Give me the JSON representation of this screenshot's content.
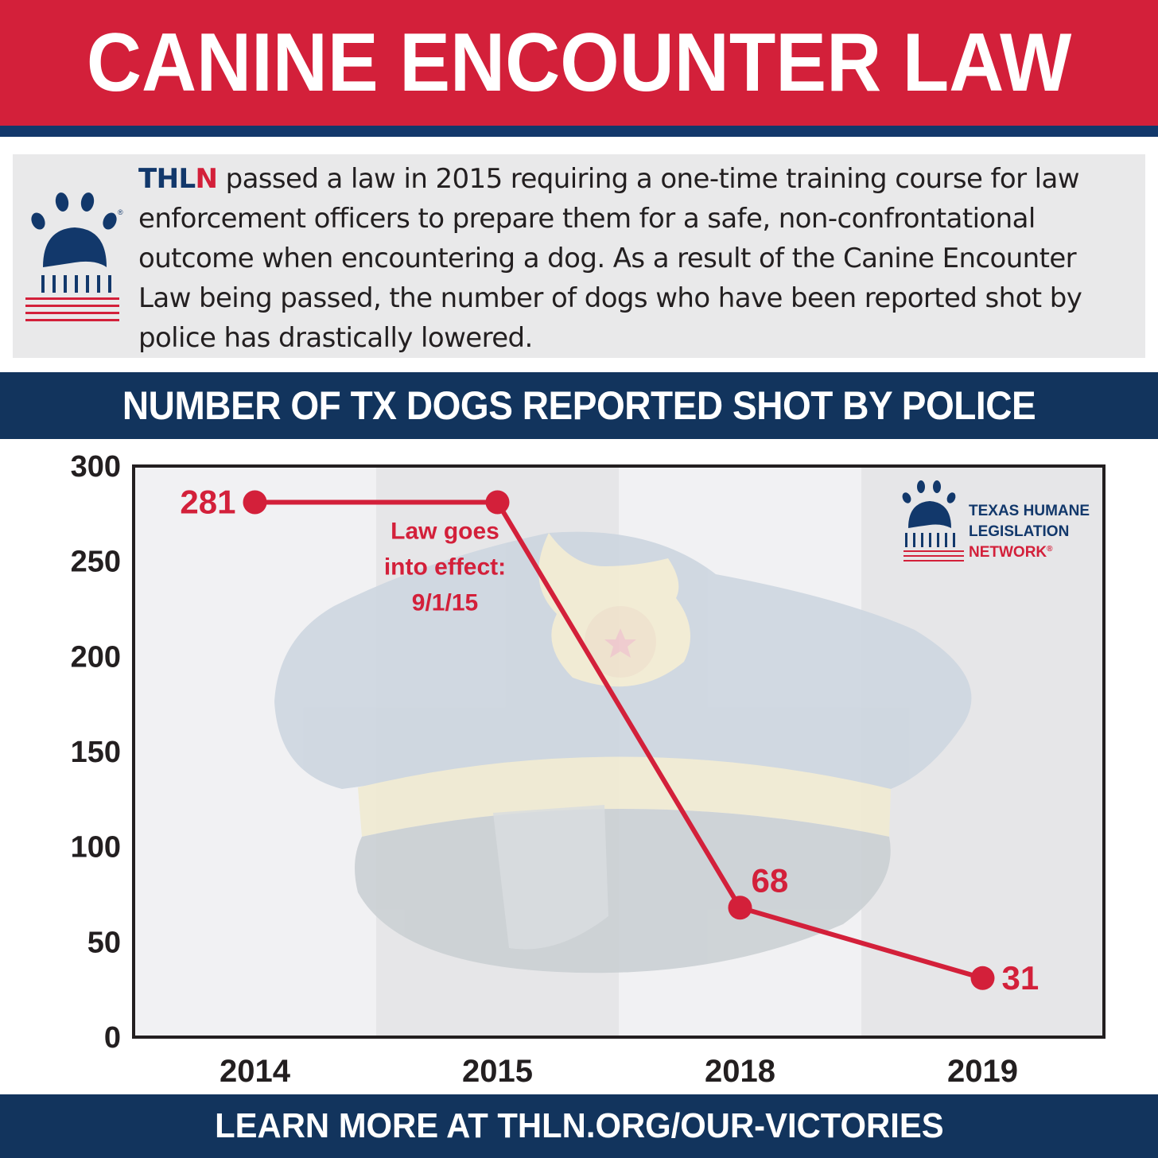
{
  "header": {
    "title": "CANINE ENCOUNTER LAW"
  },
  "intro": {
    "brand_prefix": "THL",
    "brand_suffix": "N",
    "text": " passed a law in 2015 requiring a one-time training course for law enforcement officers to prepare them for a safe, non-confrontational outcome when encountering a dog. As a result of the Canine Encounter Law being passed, the number of dogs who have been reported shot by police has drastically lowered."
  },
  "chart_title": "NUMBER OF TX DOGS REPORTED SHOT BY POLICE",
  "chart_data": {
    "type": "line",
    "title": "NUMBER OF TX DOGS REPORTED SHOT BY POLICE",
    "xlabel": "",
    "ylabel": "",
    "categories": [
      "2014",
      "2015",
      "2018",
      "2019"
    ],
    "series": [
      {
        "values": [
          281,
          281,
          68,
          31
        ],
        "data_labels": [
          "281",
          "",
          "68",
          "31"
        ]
      }
    ],
    "ylim": [
      0,
      300
    ],
    "yticks": [
      0,
      50,
      100,
      150,
      200,
      250,
      300
    ],
    "annotations": [
      {
        "x": "2015",
        "lines": [
          "Law goes",
          "into effect:",
          "9/1/15"
        ]
      }
    ],
    "grid": false,
    "legend": "none"
  },
  "logo": {
    "line1": "TEXAS HUMANE",
    "line2": "LEGISLATION",
    "line3": "NETWORK",
    "mark": "®"
  },
  "colors": {
    "brand_red": "#d3203a",
    "brand_blue": "#12386b",
    "bar_navy": "#12345d"
  },
  "icons": {
    "intro_logo": "paw-capitol-icon",
    "background": "police-cap-icon"
  },
  "footer": {
    "text": "LEARN MORE AT THLN.ORG/OUR-VICTORIES"
  }
}
